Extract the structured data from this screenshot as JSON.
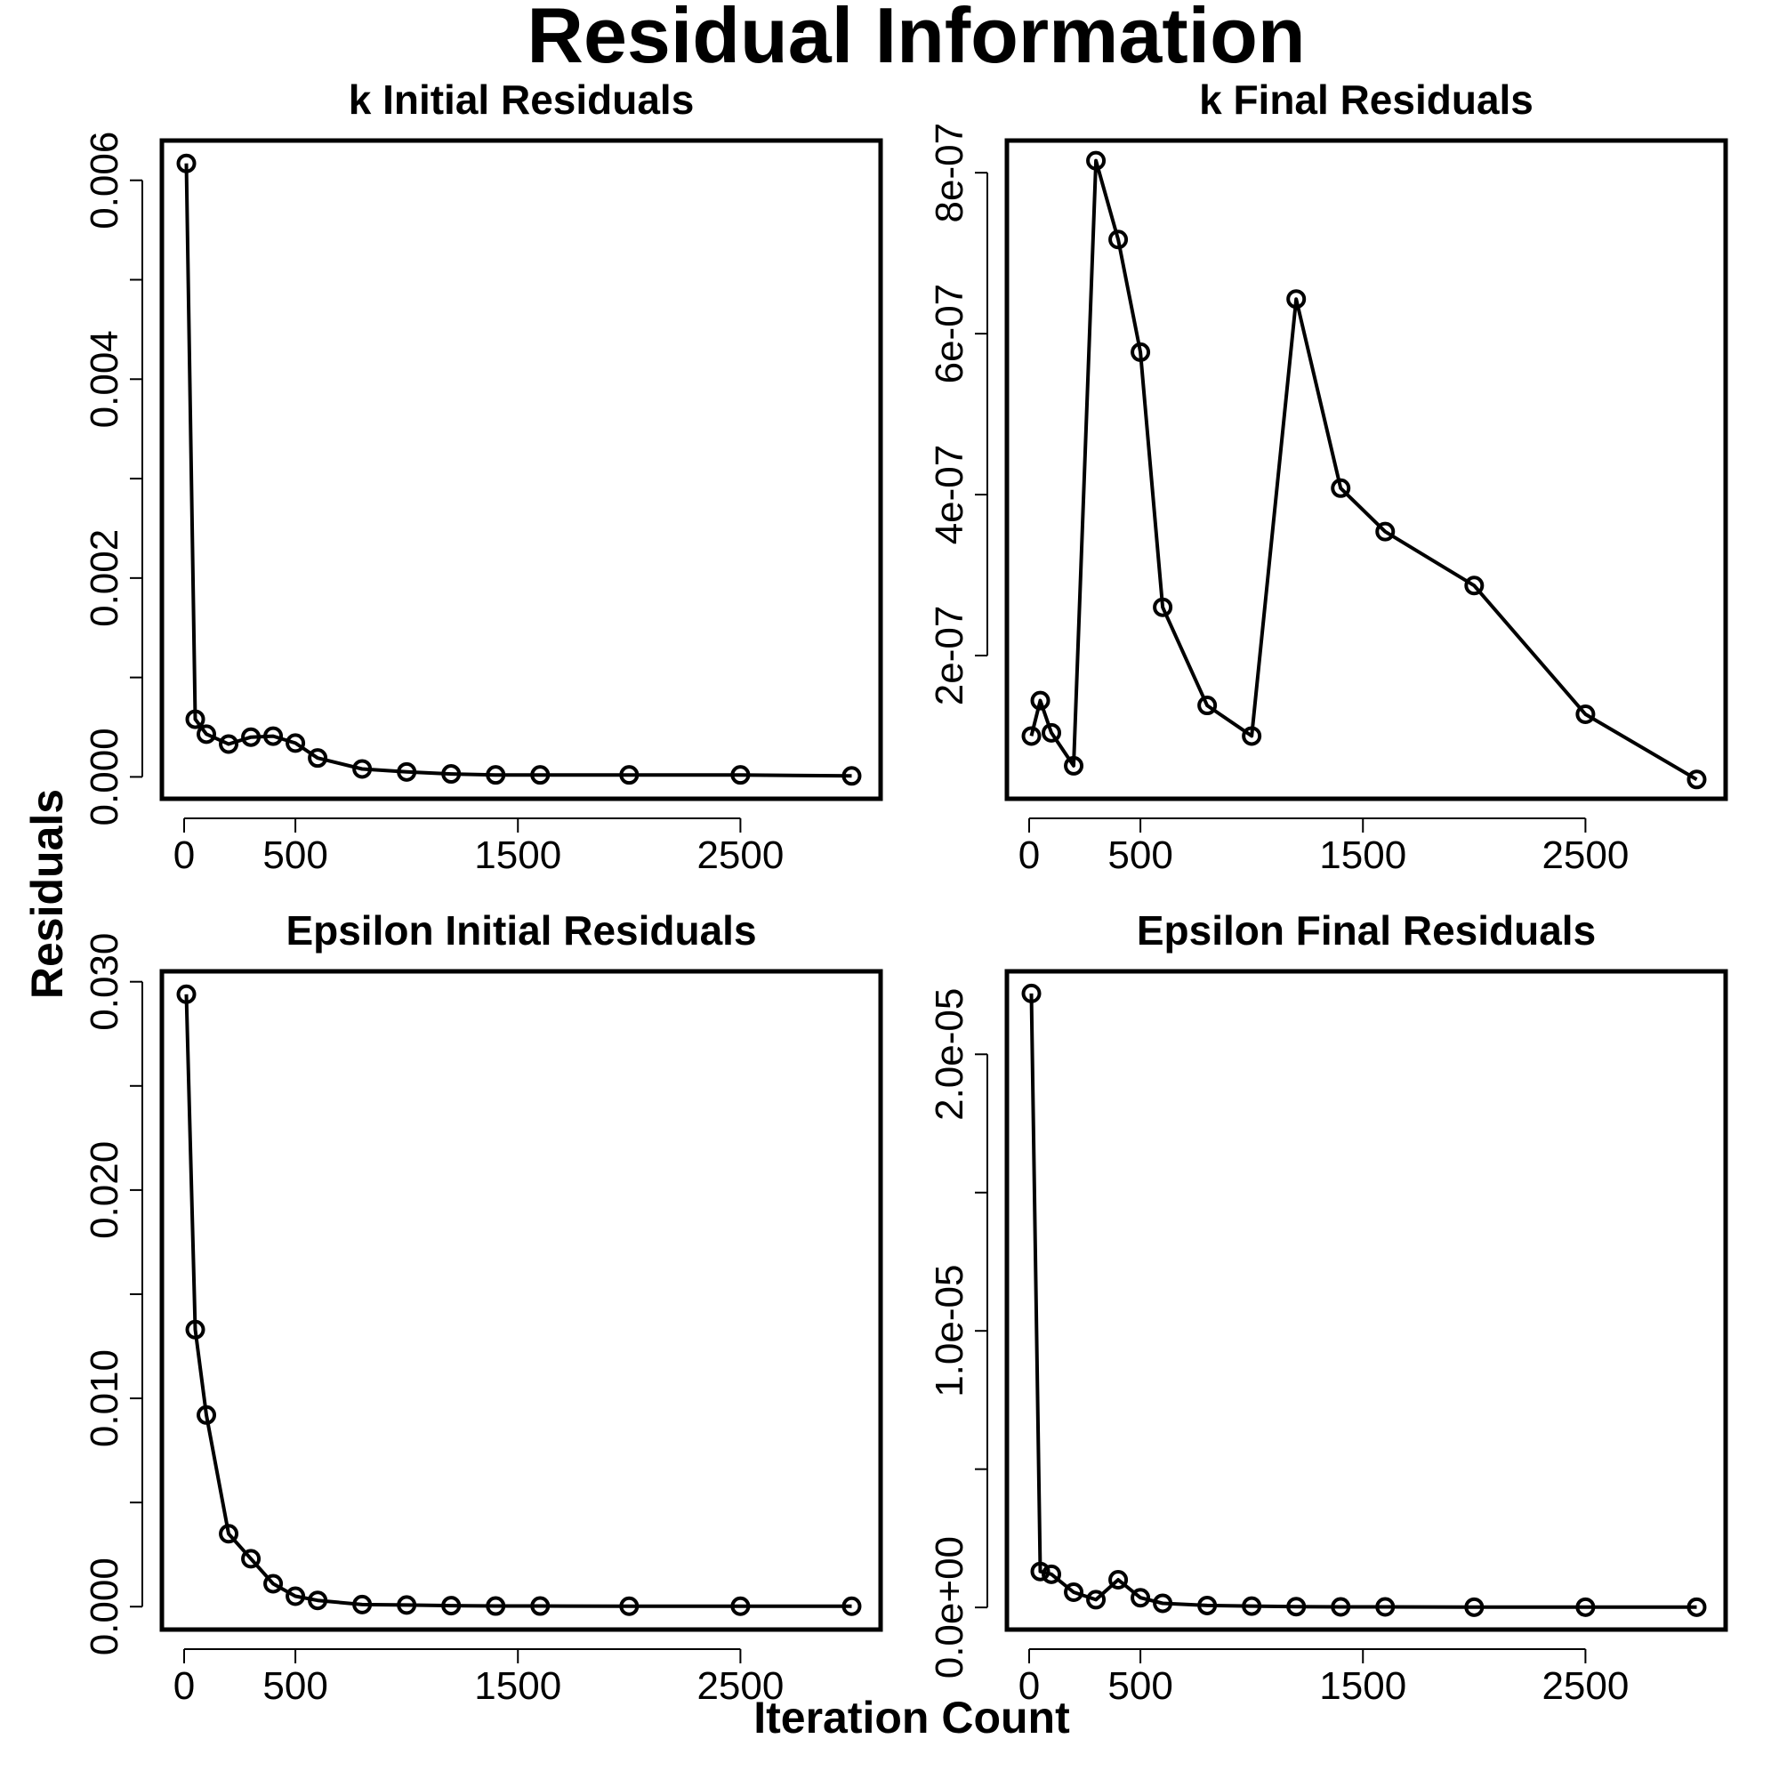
{
  "figure": {
    "title": "Residual Information",
    "xlabel": "Iteration Count",
    "ylabel": "Residuals"
  },
  "chart_data": [
    {
      "type": "line",
      "title": "k Initial Residuals",
      "x": [
        10,
        50,
        100,
        200,
        300,
        400,
        500,
        600,
        800,
        1000,
        1200,
        1400,
        1600,
        2000,
        2500,
        3000
      ],
      "series": [
        {
          "values": [
            0.00617,
            0.00058,
            0.00043,
            0.00033,
            0.0004,
            0.00041,
            0.00034,
            0.00019,
            8e-05,
            5e-05,
            3e-05,
            2e-05,
            2e-05,
            2e-05,
            2e-05,
            1e-05
          ]
        }
      ],
      "xlim": [
        -100,
        3130
      ],
      "ylim": [
        -0.00022,
        0.0064
      ],
      "xticks": [
        0,
        500,
        1500,
        2500
      ],
      "xtick_labels": [
        "0",
        "500",
        "1500",
        "2500"
      ],
      "yticks": [
        0,
        0.001,
        0.002,
        0.003,
        0.004,
        0.005,
        0.006
      ],
      "ytick_labels": [
        "0.000",
        "",
        "0.002",
        "",
        "0.004",
        "",
        "0.006"
      ],
      "marker": "open-circle",
      "color": "#000000"
    },
    {
      "type": "line",
      "title": "k Final Residuals",
      "x": [
        10,
        50,
        100,
        200,
        300,
        400,
        500,
        600,
        800,
        1000,
        1200,
        1400,
        1600,
        2000,
        2500,
        3000
      ],
      "series": [
        {
          "values": [
            1e-07,
            1.44e-07,
            1.04e-07,
            6.3e-08,
            8.15e-07,
            7.17e-07,
            5.77e-07,
            2.6e-07,
            1.38e-07,
            1e-07,
            6.43e-07,
            4.08e-07,
            3.54e-07,
            2.87e-07,
            1.27e-07,
            4.6e-08
          ]
        }
      ],
      "xlim": [
        -100,
        3130
      ],
      "ylim": [
        2.2e-08,
        8.4e-07
      ],
      "xticks": [
        0,
        500,
        1500,
        2500
      ],
      "xtick_labels": [
        "0",
        "500",
        "1500",
        "2500"
      ],
      "yticks": [
        2e-07,
        4e-07,
        6e-07,
        8e-07
      ],
      "ytick_labels": [
        "2e-07",
        "4e-07",
        "6e-07",
        "8e-07"
      ],
      "marker": "open-circle",
      "color": "#000000"
    },
    {
      "type": "line",
      "title": "Epsilon Initial Residuals",
      "x": [
        10,
        50,
        100,
        200,
        300,
        400,
        500,
        600,
        800,
        1000,
        1200,
        1400,
        1600,
        2000,
        2500,
        3000
      ],
      "series": [
        {
          "values": [
            0.0294,
            0.0133,
            0.0092,
            0.0035,
            0.0023,
            0.0011,
            0.0005,
            0.0003,
            0.0001,
            8e-05,
            5e-05,
            3e-05,
            3e-05,
            2e-05,
            2e-05,
            2e-05
          ]
        }
      ],
      "xlim": [
        -100,
        3130
      ],
      "ylim": [
        -0.0011,
        0.0305
      ],
      "xticks": [
        0,
        500,
        1500,
        2500
      ],
      "xtick_labels": [
        "0",
        "500",
        "1500",
        "2500"
      ],
      "yticks": [
        0,
        0.005,
        0.01,
        0.015,
        0.02,
        0.025,
        0.03
      ],
      "ytick_labels": [
        "0.000",
        "",
        "0.010",
        "",
        "0.020",
        "",
        "0.030"
      ],
      "marker": "open-circle",
      "color": "#000000"
    },
    {
      "type": "line",
      "title": "Epsilon Final Residuals",
      "x": [
        10,
        50,
        100,
        200,
        300,
        400,
        500,
        600,
        800,
        1000,
        1200,
        1400,
        1600,
        2000,
        2500,
        3000
      ],
      "series": [
        {
          "values": [
            2.22e-05,
            1.3e-06,
            1.2e-06,
            5.5e-07,
            2.8e-07,
            1e-06,
            3.5e-07,
            1.5e-07,
            7e-08,
            5e-08,
            3e-08,
            2e-08,
            2e-08,
            1e-08,
            1e-08,
            1e-08
          ]
        }
      ],
      "xlim": [
        -100,
        3130
      ],
      "ylim": [
        -8e-07,
        2.3e-05
      ],
      "xticks": [
        0,
        500,
        1500,
        2500
      ],
      "xtick_labels": [
        "0",
        "500",
        "1500",
        "2500"
      ],
      "yticks": [
        0,
        5e-06,
        1e-05,
        1.5e-05,
        2e-05
      ],
      "ytick_labels": [
        "0.0e+00",
        "",
        "1.0e-05",
        "",
        "2.0e-05"
      ],
      "marker": "open-circle",
      "color": "#000000"
    }
  ]
}
